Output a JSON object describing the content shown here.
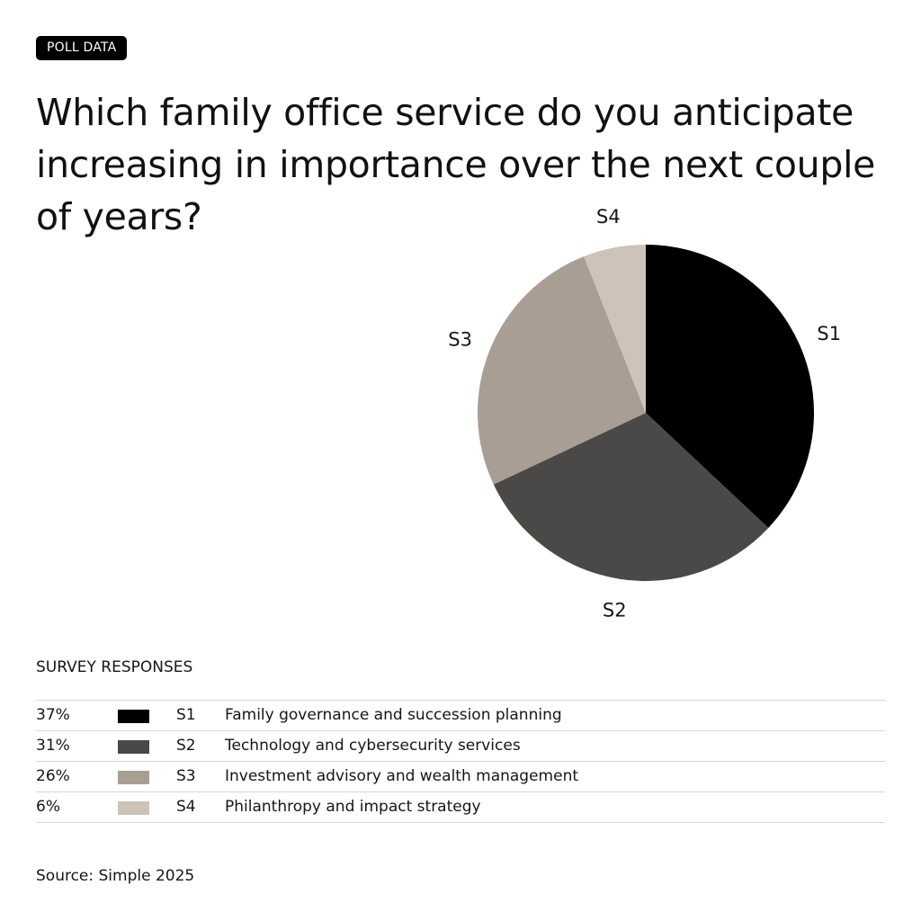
{
  "badge": "POLL DATA",
  "title": "Which family office service do you anticipate increasing in importance over the next couple of years?",
  "chart_data": {
    "type": "pie",
    "title": "Which family office service do you anticipate increasing in importance over the next couple of years?",
    "start": "top",
    "direction": "clockwise",
    "slices": [
      {
        "label": "S1",
        "value": 37,
        "name": "Family governance and succession planning",
        "color": "#000000"
      },
      {
        "label": "S2",
        "value": 31,
        "name": "Technology and cybersecurity services",
        "color": "#4a4948"
      },
      {
        "label": "S3",
        "value": 26,
        "name": "Investment advisory and wealth management",
        "color": "#a89e94"
      },
      {
        "label": "S4",
        "value": 6,
        "name": "Philanthropy and impact strategy",
        "color": "#cdc3b9"
      }
    ]
  },
  "legend": {
    "title": "SURVEY RESPONSES",
    "rows": [
      {
        "pct": "37%",
        "code": "S1",
        "desc": "Family governance and succession planning"
      },
      {
        "pct": "31%",
        "code": "S2",
        "desc": "Technology and cybersecurity services"
      },
      {
        "pct": "26%",
        "code": "S3",
        "desc": "Investment advisory and wealth management"
      },
      {
        "pct": "6%",
        "code": "S4",
        "desc": "Philanthropy and impact strategy"
      }
    ]
  },
  "source": "Source: Simple 2025"
}
